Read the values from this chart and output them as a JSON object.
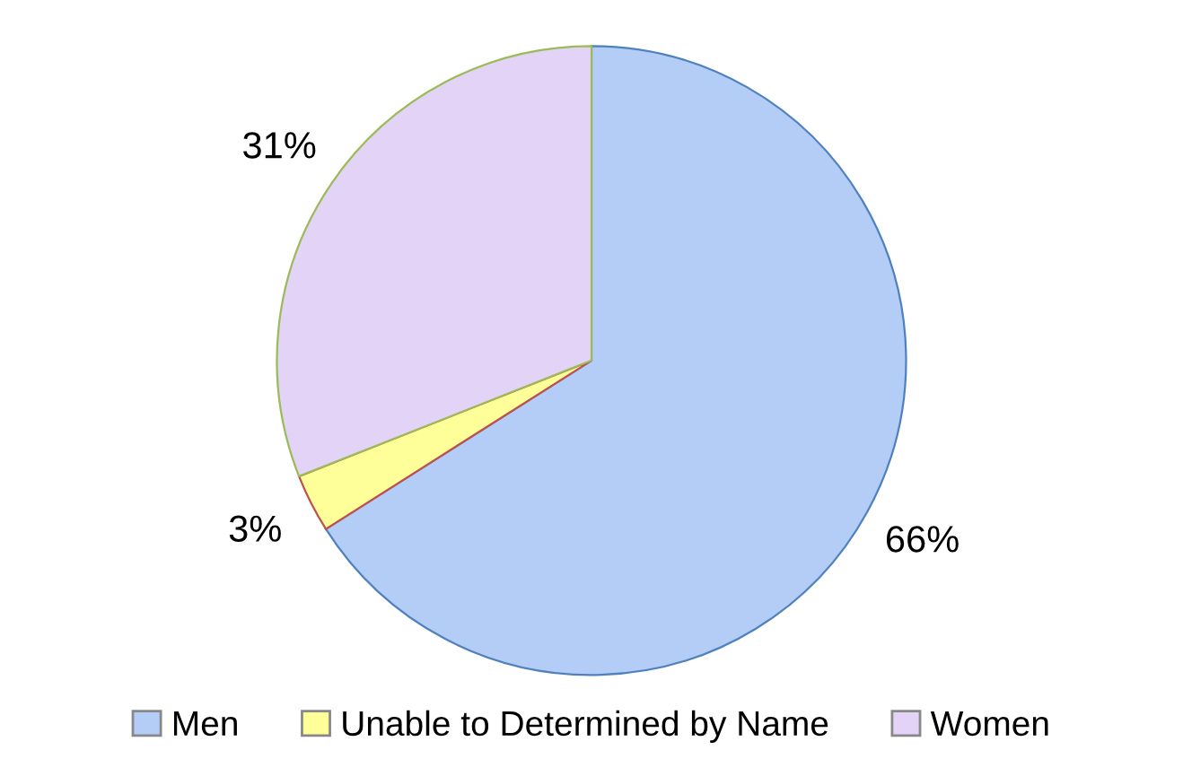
{
  "chart_data": {
    "type": "pie",
    "categories": [
      "Men",
      "Unable to Determined by Name",
      "Women"
    ],
    "values": [
      66,
      3,
      31
    ],
    "colors": [
      "#b4cdf7",
      "#ffff99",
      "#e3d3f7"
    ],
    "value_labels": [
      "66%",
      "3%",
      "31%"
    ],
    "legend": "bottom"
  }
}
